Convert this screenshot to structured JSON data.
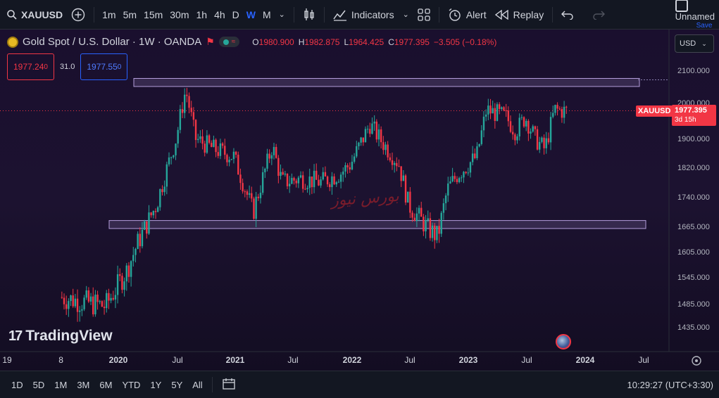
{
  "toolbar": {
    "symbol": "XAUUSD",
    "intervals": [
      "1m",
      "5m",
      "15m",
      "30m",
      "1h",
      "4h",
      "D",
      "W",
      "M"
    ],
    "active_interval": "W",
    "indicators_label": "Indicators",
    "alert_label": "Alert",
    "replay_label": "Replay",
    "layout_name": "Unnamed",
    "save_label": "Save"
  },
  "legend": {
    "title": "Gold Spot / U.S. Dollar · 1W · OANDA",
    "o_label": "O",
    "o": "1980.900",
    "h_label": "H",
    "h": "1982.875",
    "l_label": "L",
    "l": "1964.425",
    "c_label": "C",
    "c": "1977.395",
    "change": "−3.505 (−0.18%)"
  },
  "quote": {
    "sell": "1977.24",
    "sell_sup": "0",
    "spread": "31.0",
    "buy": "1977.55",
    "buy_sup": "0"
  },
  "currency": "USD",
  "last_price": {
    "symbol": "XAUUSD",
    "price": "1977.395",
    "countdown": "3d 15h"
  },
  "watermark": "TradingView",
  "overlay_text": "بورس نیوز",
  "ranges": [
    "1D",
    "5D",
    "1M",
    "3M",
    "6M",
    "YTD",
    "1Y",
    "5Y",
    "All"
  ],
  "clock": "10:29:27 (UTC+3:30)",
  "colors": {
    "up": "#26a69a",
    "down": "#f23645",
    "zone": "#b39ddb",
    "accent": "#2962ff"
  },
  "chart_data": {
    "type": "candlestick",
    "y_ticks": [
      "2100.000",
      "2000.000",
      "1900.000",
      "1820.000",
      "1740.000",
      "1665.000",
      "1605.000",
      "1545.000",
      "1485.000",
      "1435.000"
    ],
    "x_ticks": [
      "19",
      "8",
      "2020",
      "Jul",
      "2021",
      "Jul",
      "2022",
      "Jul",
      "2023",
      "Jul",
      "2024",
      "Jul"
    ],
    "resistance_zone": [
      2050,
      2075
    ],
    "support_zone": [
      1660,
      1680
    ],
    "close_points": [
      [
        "2019-08",
        1500
      ],
      [
        "2019-10",
        1490
      ],
      [
        "2019-12",
        1480
      ],
      [
        "2020-02",
        1560
      ],
      [
        "2020-03",
        1620
      ],
      [
        "2020-05",
        1720
      ],
      [
        "2020-07",
        1900
      ],
      [
        "2020-08",
        2040
      ],
      [
        "2020-09",
        1900
      ],
      [
        "2020-11",
        1870
      ],
      [
        "2021-01",
        1850
      ],
      [
        "2021-03",
        1700
      ],
      [
        "2021-05",
        1880
      ],
      [
        "2021-06",
        1780
      ],
      [
        "2021-08",
        1790
      ],
      [
        "2021-10",
        1780
      ],
      [
        "2021-12",
        1805
      ],
      [
        "2022-01",
        1830
      ],
      [
        "2022-03",
        1940
      ],
      [
        "2022-04",
        1900
      ],
      [
        "2022-06",
        1830
      ],
      [
        "2022-07",
        1720
      ],
      [
        "2022-09",
        1660
      ],
      [
        "2022-10",
        1640
      ],
      [
        "2022-11",
        1760
      ],
      [
        "2022-12",
        1800
      ],
      [
        "2023-02",
        1850
      ],
      [
        "2023-03",
        1980
      ],
      [
        "2023-05",
        1960
      ],
      [
        "2023-06",
        1920
      ],
      [
        "2023-07",
        1960
      ],
      [
        "2023-08",
        1900
      ],
      [
        "2023-09",
        1870
      ],
      [
        "2023-10",
        1980
      ],
      [
        "2023-11",
        1977
      ]
    ]
  }
}
